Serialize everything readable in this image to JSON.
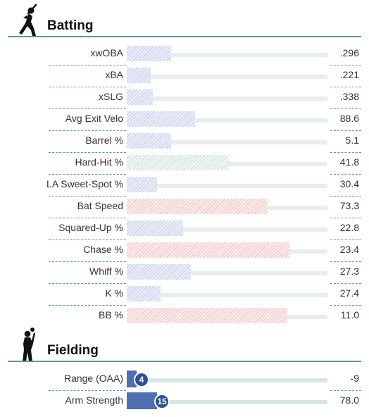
{
  "batting": {
    "title": "Batting",
    "icon": "batter-icon",
    "rows": [
      {
        "label": "xwOBA",
        "value": ".296",
        "percentile": 22,
        "color": "blue"
      },
      {
        "label": "xBA",
        "value": ".221",
        "percentile": 12,
        "color": "blue"
      },
      {
        "label": "xSLG",
        "value": ".338",
        "percentile": 13,
        "color": "blue"
      },
      {
        "label": "Avg Exit Velo",
        "value": "88.6",
        "percentile": 34,
        "color": "blue"
      },
      {
        "label": "Barrel %",
        "value": "5.1",
        "percentile": 22,
        "color": "blue"
      },
      {
        "label": "Hard-Hit %",
        "value": "41.8",
        "percentile": 51,
        "color": "neutral"
      },
      {
        "label": "LA Sweet-Spot %",
        "value": "30.4",
        "percentile": 15,
        "color": "blue"
      },
      {
        "label": "Bat Speed",
        "value": "73.3",
        "percentile": 70,
        "color": "red"
      },
      {
        "label": "Squared-Up %",
        "value": "22.8",
        "percentile": 28,
        "color": "blue"
      },
      {
        "label": "Chase %",
        "value": "23.4",
        "percentile": 81,
        "color": "red"
      },
      {
        "label": "Whiff %",
        "value": "27.3",
        "percentile": 32,
        "color": "blue"
      },
      {
        "label": "K %",
        "value": "27.4",
        "percentile": 17,
        "color": "blue"
      },
      {
        "label": "BB %",
        "value": "11.0",
        "percentile": 80,
        "color": "red"
      }
    ]
  },
  "fielding": {
    "title": "Fielding",
    "icon": "fielder-icon",
    "rows": [
      {
        "label": "Range (OAA)",
        "value": "-9",
        "percentile": 4,
        "percentile_label": "4"
      },
      {
        "label": "Arm Strength",
        "value": "78.0",
        "percentile": 15,
        "percentile_label": "15"
      }
    ]
  },
  "colors": {
    "accent": "#5b98a3",
    "good": "#f3c4c4",
    "poor": "#c7cfea",
    "fielding_bar": "#4f6fb0",
    "fielding_circle": "#2f4f94"
  }
}
